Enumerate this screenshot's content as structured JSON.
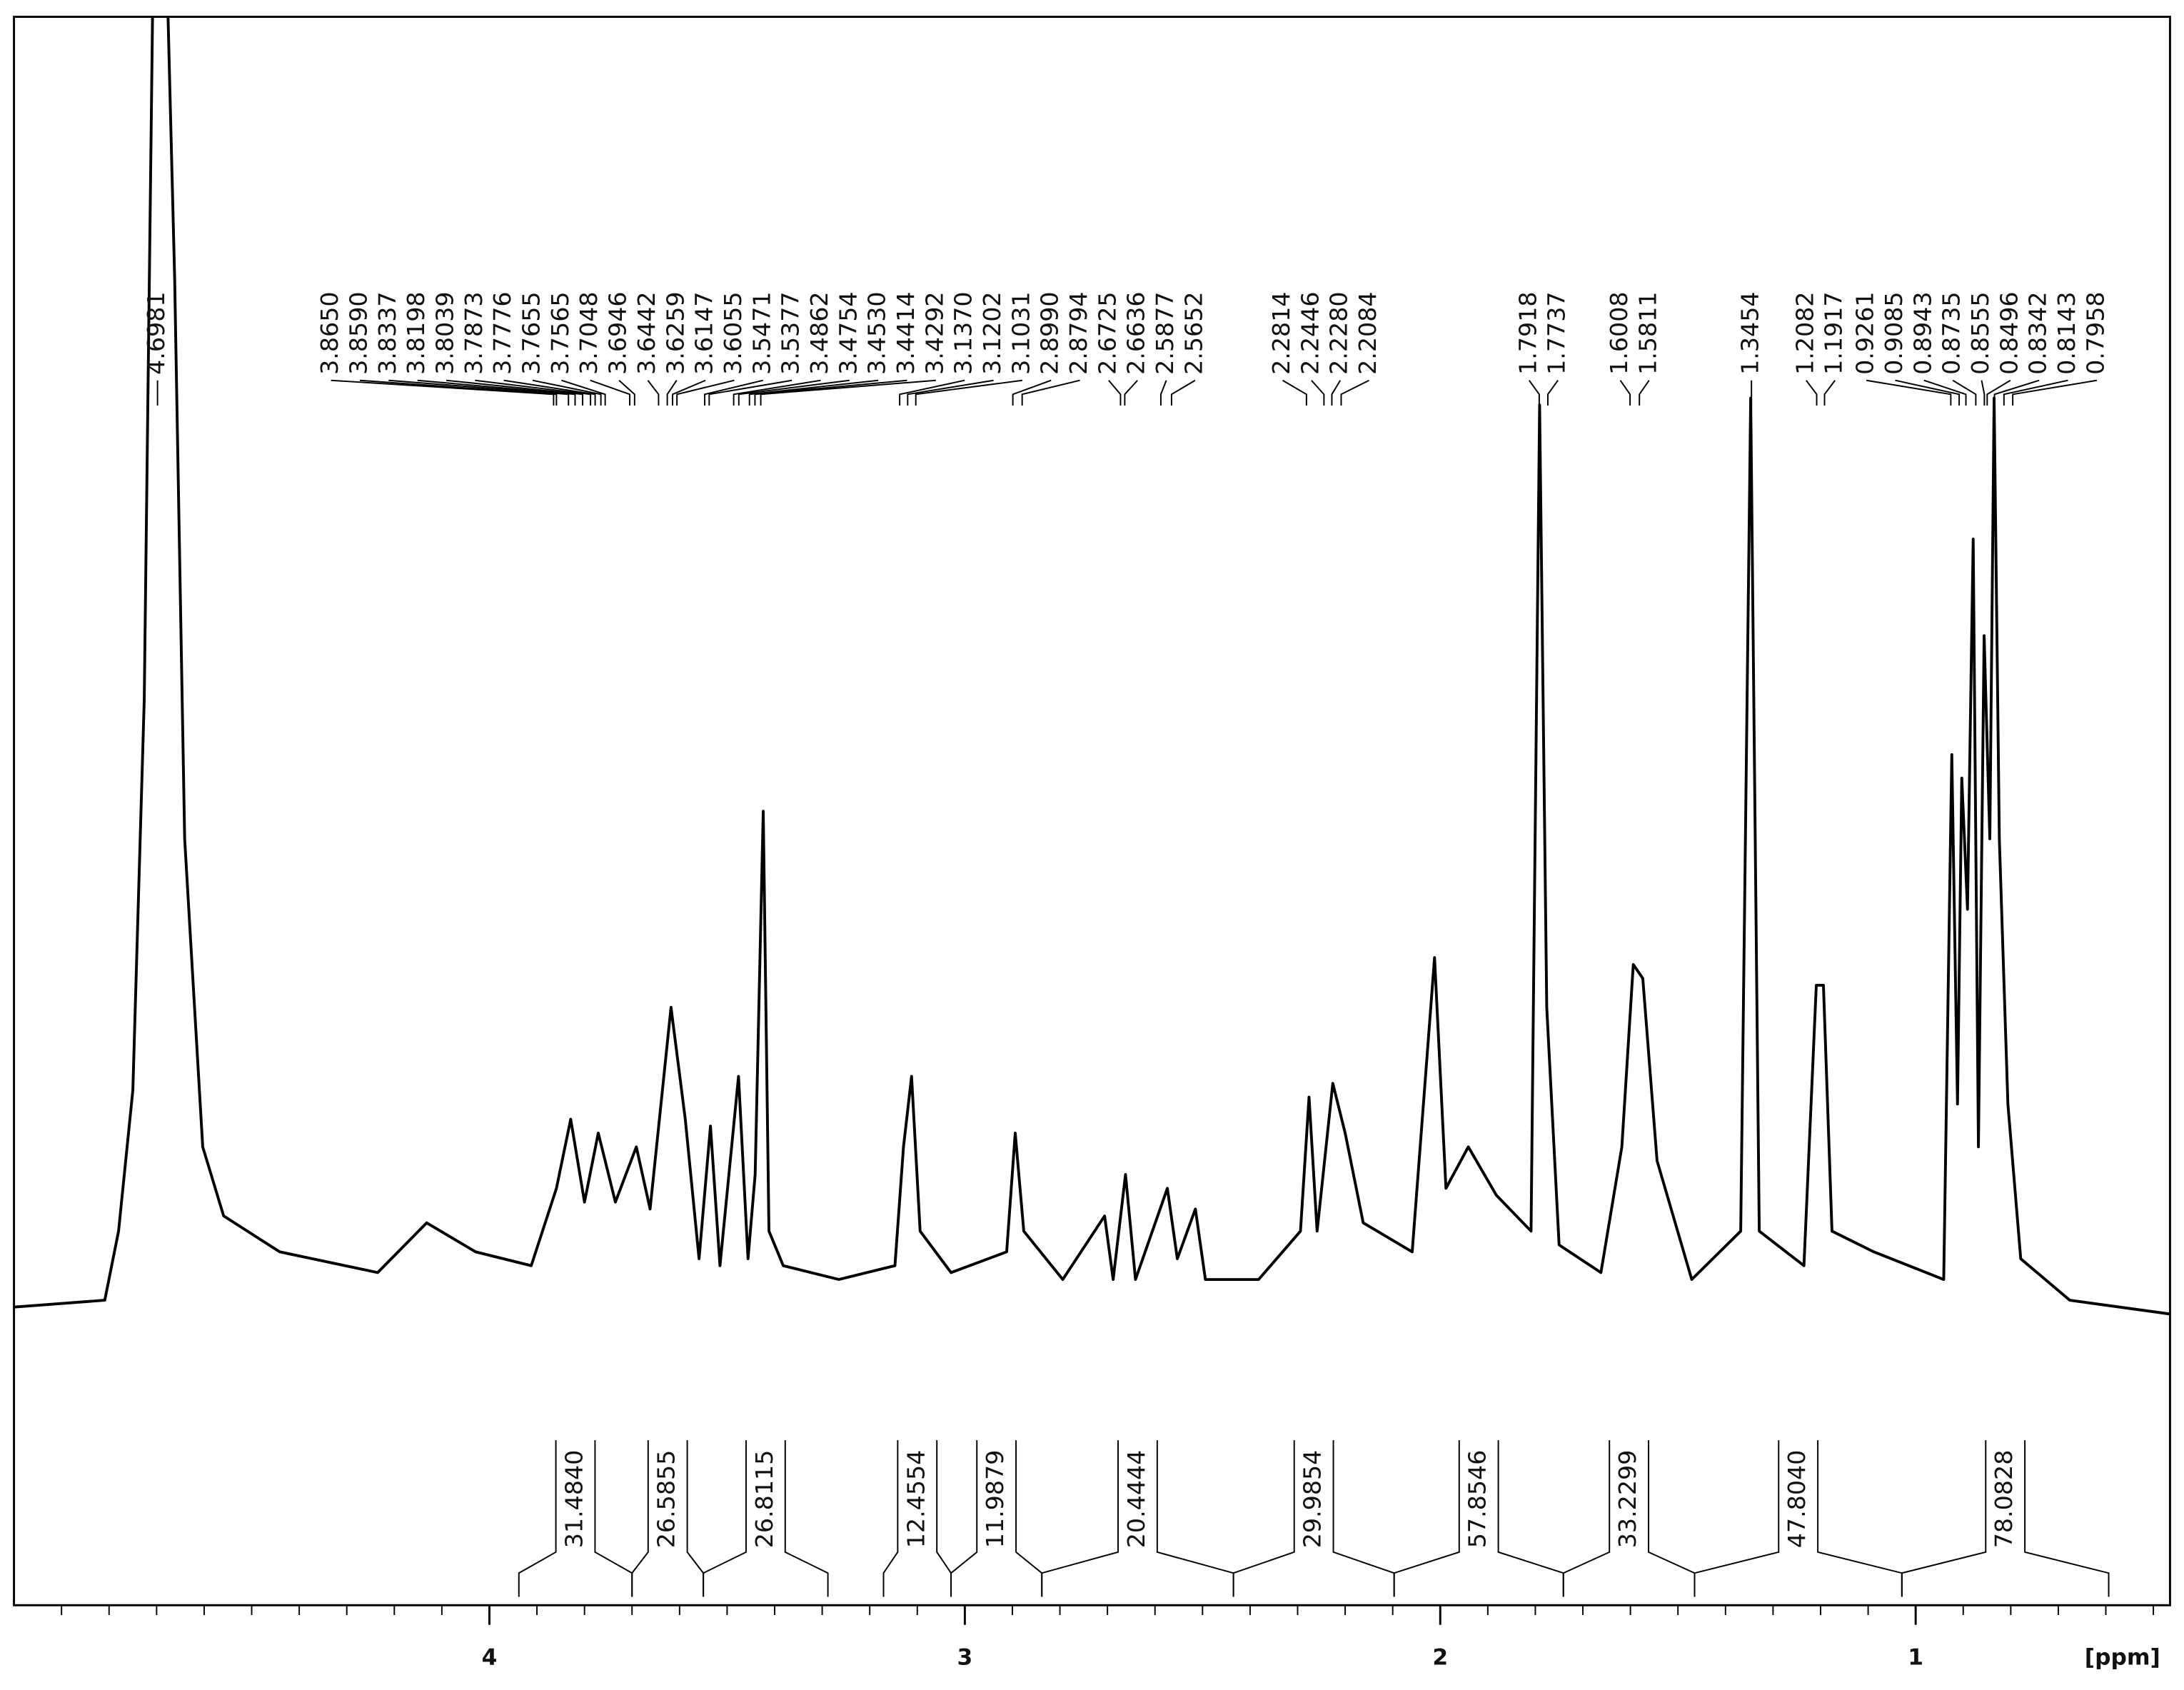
{
  "chart_data": {
    "type": "line",
    "color": "#000000",
    "xlim": [
      5.0,
      0.465
    ],
    "ylim": [
      0,
      100
    ],
    "xticks": [
      4,
      3,
      2,
      1
    ],
    "xminorticks": [
      4.9,
      4.8,
      4.7,
      4.6,
      4.5,
      4.4,
      4.3,
      4.2,
      4.1,
      3.9,
      3.8,
      3.7,
      3.6,
      3.5,
      3.4,
      3.3,
      3.2,
      3.1,
      2.9,
      2.8,
      2.7,
      2.6,
      2.5,
      2.4,
      2.3,
      2.2,
      2.1,
      1.9,
      1.8,
      1.7,
      1.6,
      1.5,
      1.4,
      1.3,
      1.2,
      1.1,
      0.9,
      0.8,
      0.7,
      0.6,
      0.5
    ],
    "x_label": "[ppm]",
    "x": [
      5.0,
      4.809,
      4.78,
      4.75,
      4.726,
      4.698,
      4.662,
      4.641,
      4.603,
      4.559,
      4.441,
      4.235,
      4.132,
      4.029,
      3.912,
      3.859,
      3.829,
      3.8,
      3.771,
      3.735,
      3.691,
      3.662,
      3.618,
      3.588,
      3.559,
      3.535,
      3.515,
      3.476,
      3.456,
      3.441,
      3.424,
      3.412,
      3.382,
      3.265,
      3.147,
      3.129,
      3.112,
      3.094,
      3.029,
      2.912,
      2.894,
      2.876,
      2.794,
      2.706,
      2.688,
      2.662,
      2.641,
      2.574,
      2.553,
      2.515,
      2.494,
      2.382,
      2.294,
      2.276,
      2.259,
      2.226,
      2.2,
      2.162,
      2.059,
      2.012,
      1.988,
      1.941,
      1.882,
      1.809,
      1.791,
      1.776,
      1.75,
      1.662,
      1.618,
      1.594,
      1.574,
      1.544,
      1.471,
      1.368,
      1.347,
      1.329,
      1.235,
      1.209,
      1.194,
      1.176,
      1.088,
      0.941,
      0.924,
      0.912,
      0.903,
      0.891,
      0.879,
      0.868,
      0.856,
      0.844,
      0.835,
      0.824,
      0.806,
      0.779,
      0.676,
      0.465
    ],
    "values": [
      6.6,
      7.1,
      12.1,
      22.3,
      50.6,
      130,
      81,
      40.5,
      18.2,
      13.2,
      10.6,
      9.1,
      12.7,
      10.6,
      9.6,
      15.2,
      20.2,
      14.2,
      19.2,
      14.2,
      18.2,
      13.7,
      28.3,
      20.2,
      10.1,
      19.7,
      9.6,
      23.3,
      10.1,
      16.2,
      42.5,
      12.1,
      9.6,
      8.6,
      9.6,
      18.2,
      23.3,
      12.1,
      9.1,
      10.6,
      19.2,
      12.1,
      8.6,
      13.2,
      8.6,
      16.2,
      8.6,
      15.2,
      10.1,
      13.7,
      8.6,
      8.6,
      12.1,
      21.8,
      12.1,
      22.8,
      19.2,
      12.7,
      10.6,
      31.9,
      15.2,
      18.2,
      14.7,
      12.1,
      71.9,
      28.3,
      11.1,
      9.1,
      18.2,
      31.4,
      30.4,
      17.2,
      8.6,
      12.1,
      72.4,
      12.1,
      9.6,
      29.9,
      29.9,
      12.1,
      10.6,
      8.6,
      46.6,
      21.3,
      44.9,
      35.4,
      62.2,
      18.2,
      55.2,
      40.5,
      72.4,
      40.5,
      21.3,
      10.1,
      7.1,
      6.1
    ],
    "peaks": [
      {
        "value": 4.6981,
        "label": "4.6981"
      },
      {
        "value": 3.865,
        "label": "3.8650"
      },
      {
        "value": 3.859,
        "label": "3.8590"
      },
      {
        "value": 3.8337,
        "label": "3.8337"
      },
      {
        "value": 3.8198,
        "label": "3.8198"
      },
      {
        "value": 3.8039,
        "label": "3.8039"
      },
      {
        "value": 3.7873,
        "label": "3.7873"
      },
      {
        "value": 3.7776,
        "label": "3.7776"
      },
      {
        "value": 3.7655,
        "label": "3.7655"
      },
      {
        "value": 3.7565,
        "label": "3.7565"
      },
      {
        "value": 3.7048,
        "label": "3.7048"
      },
      {
        "value": 3.6946,
        "label": "3.6946"
      },
      {
        "value": 3.6442,
        "label": "3.6442"
      },
      {
        "value": 3.6259,
        "label": "3.6259"
      },
      {
        "value": 3.6147,
        "label": "3.6147"
      },
      {
        "value": 3.6055,
        "label": "3.6055"
      },
      {
        "value": 3.5471,
        "label": "3.5471"
      },
      {
        "value": 3.5377,
        "label": "3.5377"
      },
      {
        "value": 3.4862,
        "label": "3.4862"
      },
      {
        "value": 3.4754,
        "label": "3.4754"
      },
      {
        "value": 3.453,
        "label": "3.4530"
      },
      {
        "value": 3.4414,
        "label": "3.4414"
      },
      {
        "value": 3.4292,
        "label": "3.4292"
      },
      {
        "value": 3.137,
        "label": "3.1370"
      },
      {
        "value": 3.1202,
        "label": "3.1202"
      },
      {
        "value": 3.1031,
        "label": "3.1031"
      },
      {
        "value": 2.899,
        "label": "2.8990"
      },
      {
        "value": 2.8794,
        "label": "2.8794"
      },
      {
        "value": 2.6725,
        "label": "2.6725"
      },
      {
        "value": 2.6636,
        "label": "2.6636"
      },
      {
        "value": 2.5877,
        "label": "2.5877"
      },
      {
        "value": 2.5652,
        "label": "2.5652"
      },
      {
        "value": 2.2814,
        "label": "2.2814"
      },
      {
        "value": 2.2446,
        "label": "2.2446"
      },
      {
        "value": 2.228,
        "label": "2.2280"
      },
      {
        "value": 2.2084,
        "label": "2.2084"
      },
      {
        "value": 1.7918,
        "label": "1.7918"
      },
      {
        "value": 1.7737,
        "label": "1.7737"
      },
      {
        "value": 1.6008,
        "label": "1.6008"
      },
      {
        "value": 1.5811,
        "label": "1.5811"
      },
      {
        "value": 1.3454,
        "label": "1.3454"
      },
      {
        "value": 1.2082,
        "label": "1.2082"
      },
      {
        "value": 1.1917,
        "label": "1.1917"
      },
      {
        "value": 0.9261,
        "label": "0.9261"
      },
      {
        "value": 0.9085,
        "label": "0.9085"
      },
      {
        "value": 0.8943,
        "label": "0.8943"
      },
      {
        "value": 0.8735,
        "label": "0.8735"
      },
      {
        "value": 0.8555,
        "label": "0.8555"
      },
      {
        "value": 0.8496,
        "label": "0.8496"
      },
      {
        "value": 0.8342,
        "label": "0.8342"
      },
      {
        "value": 0.8143,
        "label": "0.8143"
      },
      {
        "value": 0.7958,
        "label": "0.7958"
      }
    ],
    "integral_ranges": [
      [
        3.938,
        3.7
      ],
      [
        3.7,
        3.55
      ],
      [
        3.55,
        3.288
      ],
      [
        3.171,
        3.029
      ],
      [
        3.029,
        2.838
      ],
      [
        2.838,
        2.435
      ],
      [
        2.435,
        2.097
      ],
      [
        2.097,
        1.741
      ],
      [
        1.741,
        1.465
      ],
      [
        1.465,
        1.029
      ],
      [
        1.029,
        0.594
      ]
    ],
    "integral_values": [
      {
        "value": 31.484,
        "label": "31.4840"
      },
      {
        "value": 26.5855,
        "label": "26.5855"
      },
      {
        "value": 26.8115,
        "label": "26.8115"
      },
      {
        "value": 12.4554,
        "label": "12.4554"
      },
      {
        "value": 11.9879,
        "label": "11.9879"
      },
      {
        "value": 20.4444,
        "label": "20.4444"
      },
      {
        "value": 29.9854,
        "label": "29.9854"
      },
      {
        "value": 57.8546,
        "label": "57.8546"
      },
      {
        "value": 33.2299,
        "label": "33.2299"
      },
      {
        "value": 47.804,
        "label": "47.8040"
      },
      {
        "value": 78.0828,
        "label": "78.0828"
      }
    ]
  }
}
